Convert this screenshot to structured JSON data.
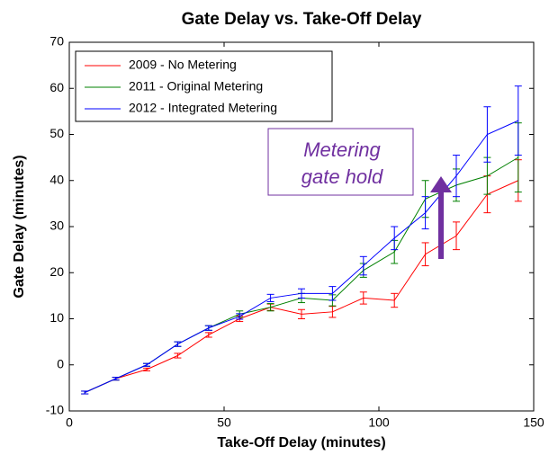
{
  "chart_data": {
    "type": "line",
    "title": "Gate Delay vs. Take-Off Delay",
    "x_label": "Take-Off Delay (minutes)",
    "y_label": "Gate Delay (minutes)",
    "x": [
      5,
      15,
      25,
      35,
      45,
      55,
      65,
      75,
      85,
      95,
      105,
      115,
      125,
      135,
      145
    ],
    "xlim": [
      0,
      150
    ],
    "xticks": [
      0,
      50,
      100,
      150
    ],
    "ylim": [
      -10,
      70
    ],
    "yticks": [
      -10,
      0,
      10,
      20,
      30,
      40,
      50,
      60,
      70
    ],
    "legend": "upper-left",
    "series": [
      {
        "name": "2009 - No Metering",
        "color": "#ff0000",
        "values": [
          -6,
          -3,
          -1,
          2,
          6.5,
          10,
          12.5,
          11,
          11.5,
          14.5,
          14,
          24,
          28,
          37,
          40
        ],
        "errors": [
          0.3,
          0.3,
          0.3,
          0.5,
          0.5,
          0.6,
          0.7,
          1,
          1.2,
          1.3,
          1.5,
          2.5,
          3,
          4,
          4.5
        ]
      },
      {
        "name": "2011 - Original Metering",
        "color": "#008000",
        "values": [
          -6,
          -3,
          0,
          4.5,
          8,
          11,
          12.5,
          14.5,
          14,
          20.5,
          24.5,
          36,
          39,
          41,
          45
        ],
        "errors": [
          0.3,
          0.3,
          0.3,
          0.5,
          0.5,
          0.7,
          0.8,
          1,
          1.2,
          1.5,
          2.5,
          4,
          3.5,
          4,
          7.5
        ]
      },
      {
        "name": "2012 - Integrated Metering",
        "color": "#0000ff",
        "values": [
          -6,
          -3,
          0,
          4.5,
          8,
          10.5,
          14.5,
          15.5,
          15.5,
          21.5,
          27.5,
          33,
          41,
          50,
          53
        ],
        "errors": [
          0.3,
          0.3,
          0.3,
          0.5,
          0.5,
          0.6,
          0.8,
          1,
          1.5,
          2,
          2.5,
          3.5,
          4.5,
          6,
          7.5
        ]
      }
    ],
    "annotation": [
      "Metering",
      "gate hold"
    ]
  }
}
